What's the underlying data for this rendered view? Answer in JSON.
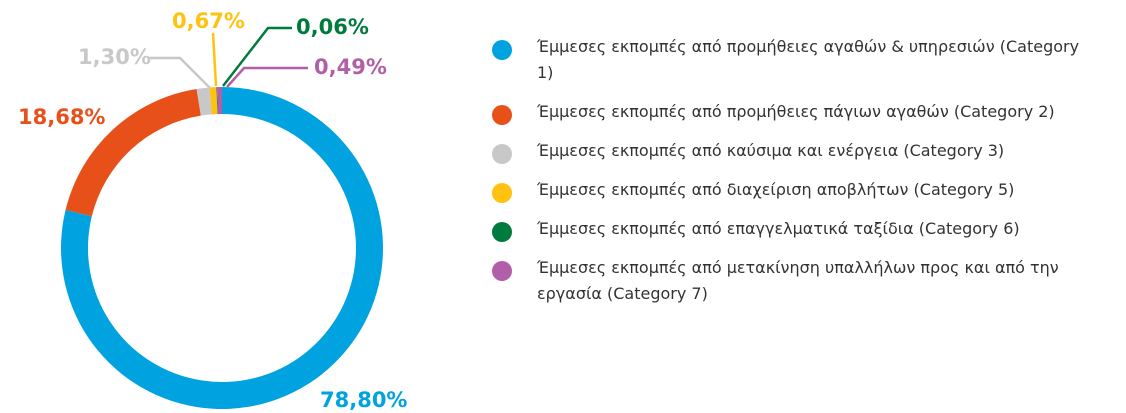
{
  "chart_data": {
    "type": "pie",
    "donut": true,
    "categories": [
      "Έμμεσες εκπομπές από προμήθειες αγαθών & υπηρεσιών (Category 1)",
      "Έμμεσες εκπομπές από προμήθειες πάγιων αγαθών (Category 2)",
      "Έμμεσες εκπομπές από καύσιμα και ενέργεια (Category 3)",
      "Έμμεσες εκπομπές από διαχείριση αποβλήτων (Category 5)",
      "Έμμεσες εκπομπές από επαγγελματικά ταξίδια (Category 6)",
      "Έμμεσες εκπομπές από μετακίνηση υπαλλήλων προς και από την εργασία (Category 7)"
    ],
    "values": [
      78.8,
      18.68,
      1.3,
      0.67,
      0.06,
      0.49
    ],
    "value_labels": [
      "78,80%",
      "18,68%",
      "1,30%",
      "0,67%",
      "0,06%",
      "0,49%"
    ],
    "colors": [
      "#00a3e0",
      "#e8501a",
      "#c8c8c8",
      "#ffc20e",
      "#007a3d",
      "#b05fa8"
    ]
  }
}
